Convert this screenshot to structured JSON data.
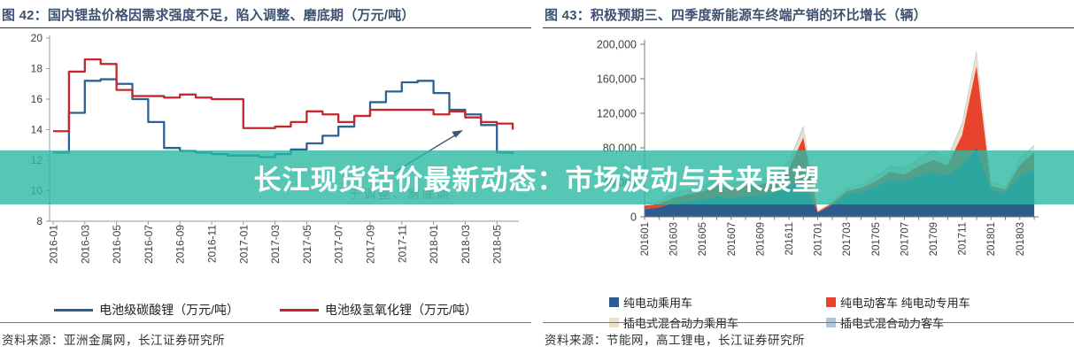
{
  "page": {
    "overlay_title": "长江现货钴价最新动态：市场波动与未来展望",
    "overlay_color": "#2CB9A3"
  },
  "left_panel": {
    "title": "图 42：国内锂盐价格因需求强度不足，陷入调整、磨底期（万元/吨）",
    "source": "资料来源：亚洲金属网，长江证券研究所"
  },
  "right_panel": {
    "title": "图 43：积极预期三、四季度新能源车终端产销的环比增长（辆）",
    "source": "资料来源：节能网，高工锂电，长江证券研究所"
  },
  "chart_data": [
    {
      "type": "line",
      "panel": "left",
      "unit": "万元/吨",
      "ylim": [
        8,
        20
      ],
      "y_ticks": [
        8,
        10,
        12,
        14,
        16,
        18,
        20
      ],
      "months": [
        "2016-01",
        "2016-02",
        "2016-03",
        "2016-04",
        "2016-05",
        "2016-06",
        "2016-07",
        "2016-08",
        "2016-09",
        "2016-10",
        "2016-11",
        "2016-12",
        "2017-01",
        "2017-02",
        "2017-03",
        "2017-04",
        "2017-05",
        "2017-06",
        "2017-07",
        "2017-08",
        "2017-09",
        "2017-10",
        "2017-11",
        "2017-12",
        "2018-01",
        "2018-02",
        "2018-03",
        "2018-04",
        "2018-05",
        "2018-06"
      ],
      "x_tick_labels": [
        "2016-01",
        "2016-03",
        "2016-05",
        "2016-07",
        "2016-09",
        "2016-11",
        "2017-01",
        "2017-03",
        "2017-05",
        "2017-07",
        "2017-09",
        "2017-11",
        "2018-01",
        "2018-03",
        "2018-05"
      ],
      "series": [
        {
          "name": "电池级碳酸锂（万元/吨）",
          "color": "#2E6091",
          "values": [
            12.5,
            15.1,
            17.2,
            17.3,
            17.0,
            16.0,
            14.5,
            12.8,
            12.6,
            12.5,
            12.4,
            12.3,
            12.3,
            12.2,
            12.4,
            12.7,
            13.1,
            13.6,
            14.2,
            14.9,
            15.8,
            16.5,
            17.1,
            17.2,
            16.4,
            15.3,
            15.0,
            14.3,
            12.5,
            12.4
          ]
        },
        {
          "name": "电池级氢氧化锂（万元/吨）",
          "color": "#C5272D",
          "values": [
            13.9,
            17.8,
            18.6,
            18.3,
            16.6,
            16.2,
            16.2,
            16.1,
            16.3,
            16.1,
            16.0,
            16.0,
            14.1,
            14.1,
            14.2,
            14.5,
            15.2,
            15.0,
            14.5,
            14.9,
            15.3,
            15.3,
            15.3,
            15.3,
            15.0,
            15.2,
            14.8,
            14.5,
            14.4,
            14.0
          ]
        }
      ],
      "annotation": {
        "text": "于调整、磨底期"
      }
    },
    {
      "type": "area",
      "panel": "right",
      "unit": "辆",
      "ylim": [
        0,
        200000
      ],
      "y_tick_values": [
        0,
        40000,
        80000,
        120000,
        160000,
        200000
      ],
      "y_tick_labels": [
        "0",
        "40,000",
        "80,000",
        "120,000",
        "160,000",
        "200,000"
      ],
      "months": [
        "201601",
        "201602",
        "201603",
        "201604",
        "201605",
        "201606",
        "201607",
        "201608",
        "201609",
        "201610",
        "201611",
        "201612",
        "201701",
        "201702",
        "201703",
        "201704",
        "201705",
        "201706",
        "201707",
        "201708",
        "201709",
        "201710",
        "201711",
        "201712",
        "201801",
        "201802",
        "201803",
        "201804"
      ],
      "x_tick_labels": [
        "201601",
        "201603",
        "201605",
        "201607",
        "201609",
        "201611",
        "201701",
        "201703",
        "201705",
        "201707",
        "201709",
        "201711",
        "201801",
        "201803"
      ],
      "series": [
        {
          "name": "纯电动乘用车",
          "color": "#2E5C8C",
          "values": [
            9000,
            11000,
            16000,
            18000,
            20000,
            24000,
            22000,
            24000,
            25000,
            28000,
            36000,
            42000,
            5000,
            14000,
            26000,
            29000,
            35000,
            44000,
            41000,
            48000,
            52000,
            49000,
            60000,
            80000,
            32000,
            28000,
            48000,
            55000
          ]
        },
        {
          "name": "纯电动客车 纯电动专用车",
          "color": "#E8432D",
          "values": [
            4000,
            4000,
            6000,
            8000,
            9000,
            13000,
            10000,
            12000,
            12000,
            14000,
            20000,
            50000,
            1000,
            2000,
            4000,
            4500,
            6000,
            8000,
            8000,
            11000,
            14000,
            11000,
            35000,
            95000,
            4000,
            3500,
            12000,
            20000
          ]
        },
        {
          "name": "插电式混合动力乘用车",
          "color": "#F1DFC3",
          "values": [
            2500,
            3000,
            4000,
            4500,
            5000,
            6000,
            5000,
            5000,
            5000,
            6000,
            7000,
            10000,
            1000,
            2000,
            3500,
            4000,
            4500,
            6000,
            6000,
            8000,
            9000,
            8000,
            11000,
            14000,
            4000,
            3500,
            7000,
            7000
          ]
        },
        {
          "name": "插电式混合动力客车",
          "color": "#A9C6E2",
          "values": [
            500,
            500,
            1000,
            1000,
            1500,
            2000,
            1500,
            1500,
            1500,
            1500,
            2000,
            3500,
            200,
            300,
            500,
            500,
            1000,
            1500,
            1500,
            1500,
            2000,
            1500,
            3000,
            4000,
            500,
            500,
            1000,
            1500
          ]
        }
      ]
    }
  ]
}
